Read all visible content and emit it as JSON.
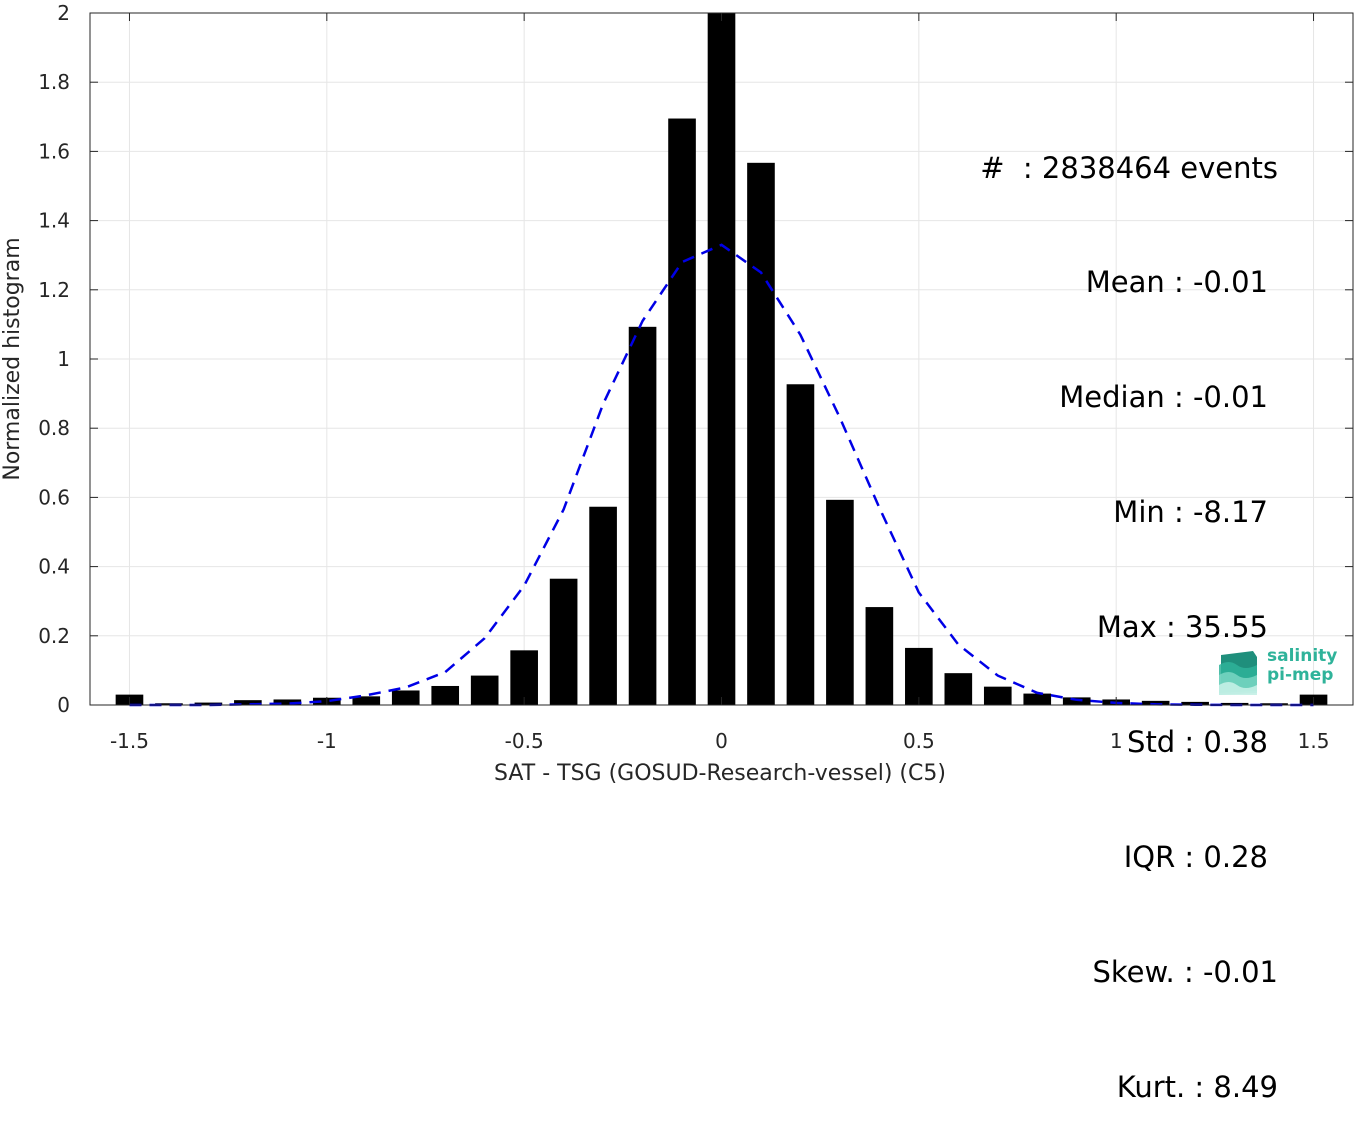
{
  "chart_data": {
    "type": "bar",
    "xlabel": "SAT - TSG (GOSUD-Research-vessel) (C5)",
    "ylabel": "Normalized histogram",
    "xlim": [
      -1.6,
      1.6
    ],
    "ylim": [
      0,
      2
    ],
    "xticks": [
      -1.5,
      -1,
      -0.5,
      0,
      0.5,
      1,
      1.5
    ],
    "xtick_labels": [
      "-1.5",
      "-1",
      "-0.5",
      "0",
      "0.5",
      "1",
      "1.5"
    ],
    "yticks": [
      0,
      0.2,
      0.4,
      0.6,
      0.8,
      1,
      1.2,
      1.4,
      1.6,
      1.8,
      2
    ],
    "ytick_labels": [
      "0",
      "0.2",
      "0.4",
      "0.6",
      "0.8",
      "1",
      "1.2",
      "1.4",
      "1.6",
      "1.8",
      "2"
    ],
    "grid": true,
    "bar_color": "#000000",
    "bar_width": 0.07,
    "series": [
      {
        "x": [
          -1.5,
          -1.4,
          -1.3,
          -1.2,
          -1.1,
          -1.0,
          -0.9,
          -0.8,
          -0.7,
          -0.6,
          -0.5,
          -0.4,
          -0.3,
          -0.2,
          -0.1,
          0.0,
          0.1,
          0.2,
          0.3,
          0.4,
          0.5,
          0.6,
          0.7,
          0.8,
          0.9,
          1.0,
          1.1,
          1.2,
          1.3,
          1.4,
          1.5
        ],
        "values": [
          0.03,
          0.005,
          0.007,
          0.014,
          0.016,
          0.021,
          0.025,
          0.042,
          0.055,
          0.085,
          0.158,
          0.365,
          0.573,
          1.093,
          1.695,
          2.0,
          1.567,
          0.927,
          0.593,
          0.283,
          0.165,
          0.092,
          0.053,
          0.033,
          0.022,
          0.016,
          0.012,
          0.009,
          0.006,
          0.005,
          0.03
        ]
      }
    ],
    "fit_curve": {
      "style": "dashed",
      "color": "#0000e6",
      "x": [
        -1.5,
        -1.4,
        -1.3,
        -1.2,
        -1.1,
        -1.0,
        -0.9,
        -0.8,
        -0.7,
        -0.6,
        -0.5,
        -0.4,
        -0.3,
        -0.2,
        -0.1,
        0.0,
        0.1,
        0.2,
        0.3,
        0.4,
        0.5,
        0.6,
        0.7,
        0.8,
        0.9,
        1.0,
        1.1,
        1.2,
        1.3,
        1.4,
        1.5
      ],
      "y": [
        0.0,
        0.0,
        0.0,
        0.002,
        0.004,
        0.011,
        0.028,
        0.051,
        0.095,
        0.193,
        0.345,
        0.565,
        0.87,
        1.11,
        1.28,
        1.33,
        1.25,
        1.07,
        0.83,
        0.57,
        0.325,
        0.175,
        0.085,
        0.035,
        0.015,
        0.006,
        0.002,
        0.001,
        0.0,
        0.0,
        0.0
      ]
    },
    "annotations": [
      "#  : 2838464 events",
      "Mean : -0.01",
      "Median : -0.01",
      "Min : -8.17",
      "Max : 35.55",
      "Std : 0.38",
      "IQR : 0.28",
      "Skew. : -0.01",
      "Kurt. : 8.49"
    ]
  },
  "logo": {
    "line1": "salinity",
    "line2": "pi-mep",
    "color": "#2fb39a"
  }
}
